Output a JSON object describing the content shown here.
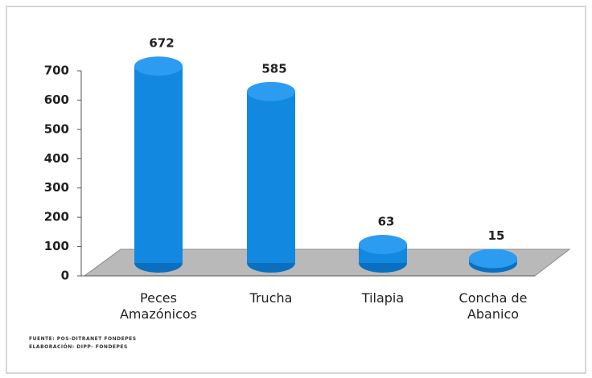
{
  "chart_data": {
    "type": "bar",
    "categories": [
      "Peces Amazónicos",
      "Trucha",
      "Tilapia",
      "Concha de Abanico"
    ],
    "values": [
      672,
      585,
      63,
      15
    ],
    "color": "#1288e0",
    "ylim": [
      0,
      700
    ],
    "yticks": [
      0,
      100,
      200,
      300,
      400,
      500,
      600,
      700
    ],
    "source": [
      "FUENTE: POS-DITRANET FONDEPES",
      "ELABORACIÓN: DIPP- FONDEPES"
    ]
  }
}
